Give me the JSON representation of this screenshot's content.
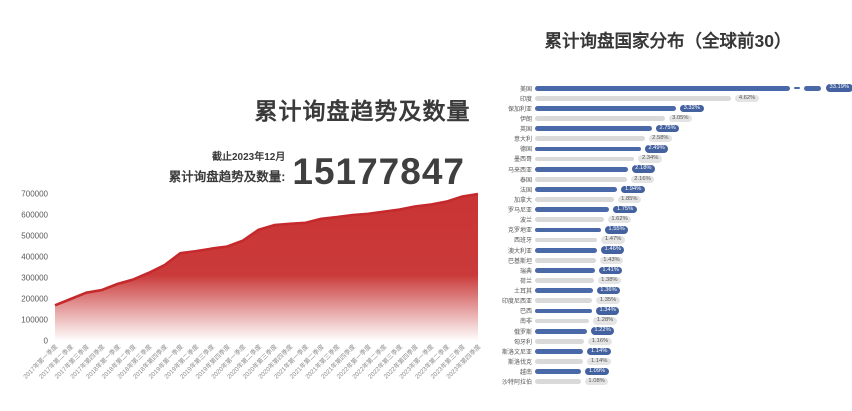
{
  "left_chart": {
    "title": "累计询盘趋势及数量",
    "as_of": "截止2023年12月",
    "stat_label": "累计询盘趋势及数量:",
    "stat_value": "15177847"
  },
  "right_chart": {
    "title": "累计询盘国家分布（全球前30）"
  },
  "colors": {
    "area_line_red": "#c5292c",
    "area_fill_red": "#c93434",
    "bar_blue": "#4a69a8",
    "bar_gray": "#d9d9d9",
    "badge_blue_bg": "#44629f",
    "badge_gray_bg": "#e4e4e4",
    "title_text": "#3a3a3a"
  },
  "chart_data": [
    {
      "type": "area",
      "title": "累计询盘趋势及数量",
      "xlabel": "",
      "ylabel": "",
      "ylim": [
        0,
        700000
      ],
      "yticks": [
        0,
        100000,
        200000,
        300000,
        400000,
        500000,
        600000,
        700000
      ],
      "grid": false,
      "legend": "none",
      "x": [
        "2017年第一季度",
        "2017年第二季度",
        "2017年第三季度",
        "2017年第四季度",
        "2018年第一季度",
        "2018年第二季度",
        "2018年第三季度",
        "2018年第四季度",
        "2019年第一季度",
        "2019年第二季度",
        "2019年第三季度",
        "2019年第四季度",
        "2020年第一季度",
        "2020年第二季度",
        "2020年第三季度",
        "2020年第四季度",
        "2021年第一季度",
        "2021年第二季度",
        "2021年第三季度",
        "2021年第四季度",
        "2022年第一季度",
        "2022年第二季度",
        "2022年第三季度",
        "2022年第四季度",
        "2023年第一季度",
        "2023年第二季度",
        "2023年第三季度",
        "2023年第四季度"
      ],
      "values": [
        170000,
        200000,
        230000,
        243000,
        272000,
        293000,
        325000,
        362000,
        418000,
        428000,
        440000,
        450000,
        478000,
        530000,
        552000,
        558000,
        563000,
        582000,
        590000,
        600000,
        606000,
        616000,
        626000,
        641000,
        650000,
        664000,
        688000,
        700000
      ]
    },
    {
      "type": "bar",
      "title": "累计询盘国家分布（全球前30）",
      "orientation": "horizontal",
      "legend": "none",
      "axis_break_index": 0,
      "categories": [
        "美国",
        "印度",
        "保加利亚",
        "伊朗",
        "英国",
        "意大利",
        "德国",
        "墨西哥",
        "马来西亚",
        "泰国",
        "法国",
        "加拿大",
        "罗马尼亚",
        "波兰",
        "克罗地亚",
        "西班牙",
        "澳大利亚",
        "巴基斯坦",
        "瑞典",
        "荷兰",
        "土耳其",
        "印度尼西亚",
        "巴西",
        "南非",
        "俄罗斯",
        "匈牙利",
        "斯洛文尼亚",
        "斯洛伐克",
        "越南",
        "沙特阿拉伯"
      ],
      "values": [
        33.19,
        4.62,
        3.32,
        3.05,
        2.75,
        2.58,
        2.49,
        2.34,
        2.18,
        2.16,
        1.94,
        1.85,
        1.75,
        1.62,
        1.55,
        1.47,
        1.46,
        1.43,
        1.41,
        1.38,
        1.36,
        1.35,
        1.34,
        1.28,
        1.22,
        1.16,
        1.14,
        1.14,
        1.09,
        1.08
      ],
      "labels": [
        "33.19%",
        "4.62%",
        "3.32%",
        "3.05%",
        "2.75%",
        "2.58%",
        "2.49%",
        "2.34%",
        "2.18%",
        "2.16%",
        "1.94%",
        "1.85%",
        "1.75%",
        "1.62%",
        "1.55%",
        "1.47%",
        "1.46%",
        "1.43%",
        "1.41%",
        "1.38%",
        "1.36%",
        "1.35%",
        "1.34%",
        "1.28%",
        "1.22%",
        "1.16%",
        "1.14%",
        "1.14%",
        "1.09%",
        "1.08%"
      ]
    }
  ]
}
